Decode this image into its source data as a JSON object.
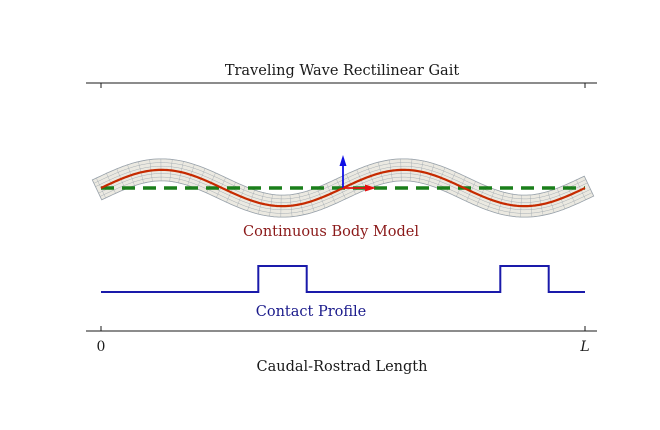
{
  "title": "Traveling Wave Rectilinear Gait",
  "xlabel": "Caudal-Rostrad Length",
  "ticks": {
    "start": "0",
    "end": "L"
  },
  "annotations": {
    "body_model": "Continuous Body Model",
    "contact_profile": "Contact Profile"
  },
  "colors": {
    "centerline": "#c62a00",
    "body_mesh_fill": "#ebe9e1",
    "body_mesh_edge": "#9aa3ab",
    "ground_line": "#1a7f1a",
    "frame_y_axis": "#1010e6",
    "frame_x_axis": "#e61010",
    "contact_profile": "#1a1aaa",
    "body_label": "#8b1a1a",
    "contact_label": "#1a1a8b",
    "axes": "#1a1a1a"
  },
  "body_wave": {
    "wavelengths_along_body": 2,
    "amplitude_fraction_of_length": 0.0375,
    "phase": "starts rising from baseline at tail"
  },
  "contact_profile": {
    "baseline_level": 0,
    "raised_level": 1,
    "raised_intervals_fraction_of_length": [
      [
        0.325,
        0.425
      ],
      [
        0.825,
        0.925
      ]
    ]
  }
}
